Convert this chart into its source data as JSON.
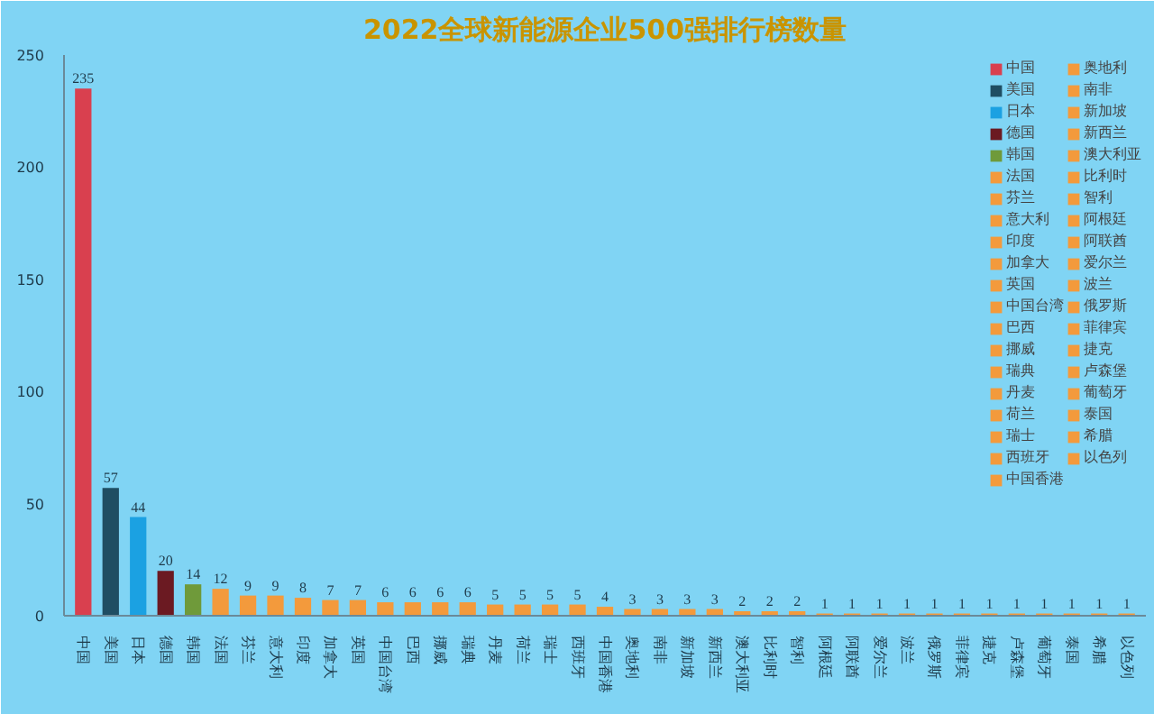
{
  "chart_data": {
    "type": "bar",
    "title": "2022全球新能源企业500强排行榜数量",
    "categories": [
      "中国",
      "美国",
      "日本",
      "德国",
      "韩国",
      "法国",
      "芬兰",
      "意大利",
      "印度",
      "加拿大",
      "英国",
      "中国台湾",
      "巴西",
      "挪威",
      "瑞典",
      "丹麦",
      "荷兰",
      "瑞士",
      "西班牙",
      "中国香港",
      "奥地利",
      "南非",
      "新加坡",
      "新西兰",
      "澳大利亚",
      "比利时",
      "智利",
      "阿根廷",
      "阿联酋",
      "爱尔兰",
      "波兰",
      "俄罗斯",
      "菲律宾",
      "捷克",
      "卢森堡",
      "葡萄牙",
      "泰国",
      "希腊",
      "以色列"
    ],
    "series": [
      {
        "name": "中国",
        "color": "#d9404f",
        "values": [
          235,
          null,
          null,
          null,
          null,
          null,
          null,
          null,
          null,
          null,
          null,
          null,
          null,
          null,
          null,
          null,
          null,
          null,
          null,
          null,
          null,
          null,
          null,
          null,
          null,
          null,
          null,
          null,
          null,
          null,
          null,
          null,
          null,
          null,
          null,
          null,
          null,
          null,
          null
        ]
      },
      {
        "name": "美国",
        "color": "#1f4e63",
        "values": [
          null,
          57,
          null,
          null,
          null,
          null,
          null,
          null,
          null,
          null,
          null,
          null,
          null,
          null,
          null,
          null,
          null,
          null,
          null,
          null,
          null,
          null,
          null,
          null,
          null,
          null,
          null,
          null,
          null,
          null,
          null,
          null,
          null,
          null,
          null,
          null,
          null,
          null,
          null
        ]
      },
      {
        "name": "日本",
        "color": "#1ba1e2",
        "values": [
          null,
          null,
          44,
          null,
          null,
          null,
          null,
          null,
          null,
          null,
          null,
          null,
          null,
          null,
          null,
          null,
          null,
          null,
          null,
          null,
          null,
          null,
          null,
          null,
          null,
          null,
          null,
          null,
          null,
          null,
          null,
          null,
          null,
          null,
          null,
          null,
          null,
          null,
          null
        ]
      },
      {
        "name": "德国",
        "color": "#6b1a22",
        "values": [
          null,
          null,
          null,
          20,
          null,
          null,
          null,
          null,
          null,
          null,
          null,
          null,
          null,
          null,
          null,
          null,
          null,
          null,
          null,
          null,
          null,
          null,
          null,
          null,
          null,
          null,
          null,
          null,
          null,
          null,
          null,
          null,
          null,
          null,
          null,
          null,
          null,
          null,
          null
        ]
      },
      {
        "name": "韩国",
        "color": "#6f9a3a",
        "values": [
          null,
          null,
          null,
          null,
          14,
          null,
          null,
          null,
          null,
          null,
          null,
          null,
          null,
          null,
          null,
          null,
          null,
          null,
          null,
          null,
          null,
          null,
          null,
          null,
          null,
          null,
          null,
          null,
          null,
          null,
          null,
          null,
          null,
          null,
          null,
          null,
          null,
          null,
          null
        ]
      },
      {
        "name": "法国",
        "color": "#f39a3c",
        "values": [
          null,
          null,
          null,
          null,
          null,
          12,
          null,
          null,
          null,
          null,
          null,
          null,
          null,
          null,
          null,
          null,
          null,
          null,
          null,
          null,
          null,
          null,
          null,
          null,
          null,
          null,
          null,
          null,
          null,
          null,
          null,
          null,
          null,
          null,
          null,
          null,
          null,
          null,
          null
        ]
      },
      {
        "name": "芬兰",
        "color": "#f39a3c",
        "values": [
          null,
          null,
          null,
          null,
          null,
          null,
          9,
          null,
          null,
          null,
          null,
          null,
          null,
          null,
          null,
          null,
          null,
          null,
          null,
          null,
          null,
          null,
          null,
          null,
          null,
          null,
          null,
          null,
          null,
          null,
          null,
          null,
          null,
          null,
          null,
          null,
          null,
          null,
          null
        ]
      },
      {
        "name": "意大利",
        "color": "#f39a3c",
        "values": [
          null,
          null,
          null,
          null,
          null,
          null,
          null,
          9,
          null,
          null,
          null,
          null,
          null,
          null,
          null,
          null,
          null,
          null,
          null,
          null,
          null,
          null,
          null,
          null,
          null,
          null,
          null,
          null,
          null,
          null,
          null,
          null,
          null,
          null,
          null,
          null,
          null,
          null,
          null
        ]
      },
      {
        "name": "印度",
        "color": "#f39a3c",
        "values": [
          null,
          null,
          null,
          null,
          null,
          null,
          null,
          null,
          8,
          null,
          null,
          null,
          null,
          null,
          null,
          null,
          null,
          null,
          null,
          null,
          null,
          null,
          null,
          null,
          null,
          null,
          null,
          null,
          null,
          null,
          null,
          null,
          null,
          null,
          null,
          null,
          null,
          null,
          null
        ]
      },
      {
        "name": "加拿大",
        "color": "#f39a3c",
        "values": [
          null,
          null,
          null,
          null,
          null,
          null,
          null,
          null,
          null,
          7,
          null,
          null,
          null,
          null,
          null,
          null,
          null,
          null,
          null,
          null,
          null,
          null,
          null,
          null,
          null,
          null,
          null,
          null,
          null,
          null,
          null,
          null,
          null,
          null,
          null,
          null,
          null,
          null,
          null
        ]
      },
      {
        "name": "英国",
        "color": "#f39a3c",
        "values": [
          null,
          null,
          null,
          null,
          null,
          null,
          null,
          null,
          null,
          null,
          7,
          null,
          null,
          null,
          null,
          null,
          null,
          null,
          null,
          null,
          null,
          null,
          null,
          null,
          null,
          null,
          null,
          null,
          null,
          null,
          null,
          null,
          null,
          null,
          null,
          null,
          null,
          null,
          null
        ]
      },
      {
        "name": "中国台湾",
        "color": "#f39a3c",
        "values": [
          null,
          null,
          null,
          null,
          null,
          null,
          null,
          null,
          null,
          null,
          null,
          6,
          null,
          null,
          null,
          null,
          null,
          null,
          null,
          null,
          null,
          null,
          null,
          null,
          null,
          null,
          null,
          null,
          null,
          null,
          null,
          null,
          null,
          null,
          null,
          null,
          null,
          null,
          null
        ]
      },
      {
        "name": "巴西",
        "color": "#f39a3c",
        "values": [
          null,
          null,
          null,
          null,
          null,
          null,
          null,
          null,
          null,
          null,
          null,
          null,
          6,
          null,
          null,
          null,
          null,
          null,
          null,
          null,
          null,
          null,
          null,
          null,
          null,
          null,
          null,
          null,
          null,
          null,
          null,
          null,
          null,
          null,
          null,
          null,
          null,
          null,
          null
        ]
      },
      {
        "name": "挪威",
        "color": "#f39a3c",
        "values": [
          null,
          null,
          null,
          null,
          null,
          null,
          null,
          null,
          null,
          null,
          null,
          null,
          null,
          6,
          null,
          null,
          null,
          null,
          null,
          null,
          null,
          null,
          null,
          null,
          null,
          null,
          null,
          null,
          null,
          null,
          null,
          null,
          null,
          null,
          null,
          null,
          null,
          null,
          null
        ]
      },
      {
        "name": "瑞典",
        "color": "#f39a3c",
        "values": [
          null,
          null,
          null,
          null,
          null,
          null,
          null,
          null,
          null,
          null,
          null,
          null,
          null,
          null,
          6,
          null,
          null,
          null,
          null,
          null,
          null,
          null,
          null,
          null,
          null,
          null,
          null,
          null,
          null,
          null,
          null,
          null,
          null,
          null,
          null,
          null,
          null,
          null,
          null
        ]
      },
      {
        "name": "丹麦",
        "color": "#f39a3c",
        "values": [
          null,
          null,
          null,
          null,
          null,
          null,
          null,
          null,
          null,
          null,
          null,
          null,
          null,
          null,
          null,
          5,
          null,
          null,
          null,
          null,
          null,
          null,
          null,
          null,
          null,
          null,
          null,
          null,
          null,
          null,
          null,
          null,
          null,
          null,
          null,
          null,
          null,
          null,
          null
        ]
      },
      {
        "name": "荷兰",
        "color": "#f39a3c",
        "values": [
          null,
          null,
          null,
          null,
          null,
          null,
          null,
          null,
          null,
          null,
          null,
          null,
          null,
          null,
          null,
          null,
          5,
          null,
          null,
          null,
          null,
          null,
          null,
          null,
          null,
          null,
          null,
          null,
          null,
          null,
          null,
          null,
          null,
          null,
          null,
          null,
          null,
          null,
          null
        ]
      },
      {
        "name": "瑞士",
        "color": "#f39a3c",
        "values": [
          null,
          null,
          null,
          null,
          null,
          null,
          null,
          null,
          null,
          null,
          null,
          null,
          null,
          null,
          null,
          null,
          null,
          5,
          null,
          null,
          null,
          null,
          null,
          null,
          null,
          null,
          null,
          null,
          null,
          null,
          null,
          null,
          null,
          null,
          null,
          null,
          null,
          null,
          null
        ]
      },
      {
        "name": "西班牙",
        "color": "#f39a3c",
        "values": [
          null,
          null,
          null,
          null,
          null,
          null,
          null,
          null,
          null,
          null,
          null,
          null,
          null,
          null,
          null,
          null,
          null,
          null,
          5,
          null,
          null,
          null,
          null,
          null,
          null,
          null,
          null,
          null,
          null,
          null,
          null,
          null,
          null,
          null,
          null,
          null,
          null,
          null,
          null
        ]
      },
      {
        "name": "中国香港",
        "color": "#f39a3c",
        "values": [
          null,
          null,
          null,
          null,
          null,
          null,
          null,
          null,
          null,
          null,
          null,
          null,
          null,
          null,
          null,
          null,
          null,
          null,
          null,
          4,
          null,
          null,
          null,
          null,
          null,
          null,
          null,
          null,
          null,
          null,
          null,
          null,
          null,
          null,
          null,
          null,
          null,
          null,
          null
        ]
      },
      {
        "name": "奥地利",
        "color": "#f39a3c",
        "values": [
          null,
          null,
          null,
          null,
          null,
          null,
          null,
          null,
          null,
          null,
          null,
          null,
          null,
          null,
          null,
          null,
          null,
          null,
          null,
          null,
          3,
          null,
          null,
          null,
          null,
          null,
          null,
          null,
          null,
          null,
          null,
          null,
          null,
          null,
          null,
          null,
          null,
          null,
          null
        ]
      },
      {
        "name": "南非",
        "color": "#f39a3c",
        "values": [
          null,
          null,
          null,
          null,
          null,
          null,
          null,
          null,
          null,
          null,
          null,
          null,
          null,
          null,
          null,
          null,
          null,
          null,
          null,
          null,
          null,
          3,
          null,
          null,
          null,
          null,
          null,
          null,
          null,
          null,
          null,
          null,
          null,
          null,
          null,
          null,
          null,
          null,
          null
        ]
      },
      {
        "name": "新加坡",
        "color": "#f39a3c",
        "values": [
          null,
          null,
          null,
          null,
          null,
          null,
          null,
          null,
          null,
          null,
          null,
          null,
          null,
          null,
          null,
          null,
          null,
          null,
          null,
          null,
          null,
          null,
          3,
          null,
          null,
          null,
          null,
          null,
          null,
          null,
          null,
          null,
          null,
          null,
          null,
          null,
          null,
          null,
          null
        ]
      },
      {
        "name": "新西兰",
        "color": "#f39a3c",
        "values": [
          null,
          null,
          null,
          null,
          null,
          null,
          null,
          null,
          null,
          null,
          null,
          null,
          null,
          null,
          null,
          null,
          null,
          null,
          null,
          null,
          null,
          null,
          null,
          3,
          null,
          null,
          null,
          null,
          null,
          null,
          null,
          null,
          null,
          null,
          null,
          null,
          null,
          null,
          null
        ]
      },
      {
        "name": "澳大利亚",
        "color": "#f39a3c",
        "values": [
          null,
          null,
          null,
          null,
          null,
          null,
          null,
          null,
          null,
          null,
          null,
          null,
          null,
          null,
          null,
          null,
          null,
          null,
          null,
          null,
          null,
          null,
          null,
          null,
          2,
          null,
          null,
          null,
          null,
          null,
          null,
          null,
          null,
          null,
          null,
          null,
          null,
          null,
          null
        ]
      },
      {
        "name": "比利时",
        "color": "#f39a3c",
        "values": [
          null,
          null,
          null,
          null,
          null,
          null,
          null,
          null,
          null,
          null,
          null,
          null,
          null,
          null,
          null,
          null,
          null,
          null,
          null,
          null,
          null,
          null,
          null,
          null,
          null,
          2,
          null,
          null,
          null,
          null,
          null,
          null,
          null,
          null,
          null,
          null,
          null,
          null,
          null
        ]
      },
      {
        "name": "智利",
        "color": "#f39a3c",
        "values": [
          null,
          null,
          null,
          null,
          null,
          null,
          null,
          null,
          null,
          null,
          null,
          null,
          null,
          null,
          null,
          null,
          null,
          null,
          null,
          null,
          null,
          null,
          null,
          null,
          null,
          null,
          2,
          null,
          null,
          null,
          null,
          null,
          null,
          null,
          null,
          null,
          null,
          null,
          null
        ]
      },
      {
        "name": "阿根廷",
        "color": "#f39a3c",
        "values": [
          null,
          null,
          null,
          null,
          null,
          null,
          null,
          null,
          null,
          null,
          null,
          null,
          null,
          null,
          null,
          null,
          null,
          null,
          null,
          null,
          null,
          null,
          null,
          null,
          null,
          null,
          null,
          1,
          null,
          null,
          null,
          null,
          null,
          null,
          null,
          null,
          null,
          null,
          null
        ]
      },
      {
        "name": "阿联酋",
        "color": "#f39a3c",
        "values": [
          null,
          null,
          null,
          null,
          null,
          null,
          null,
          null,
          null,
          null,
          null,
          null,
          null,
          null,
          null,
          null,
          null,
          null,
          null,
          null,
          null,
          null,
          null,
          null,
          null,
          null,
          null,
          null,
          1,
          null,
          null,
          null,
          null,
          null,
          null,
          null,
          null,
          null,
          null
        ]
      },
      {
        "name": "爱尔兰",
        "color": "#f39a3c",
        "values": [
          null,
          null,
          null,
          null,
          null,
          null,
          null,
          null,
          null,
          null,
          null,
          null,
          null,
          null,
          null,
          null,
          null,
          null,
          null,
          null,
          null,
          null,
          null,
          null,
          null,
          null,
          null,
          null,
          null,
          1,
          null,
          null,
          null,
          null,
          null,
          null,
          null,
          null,
          null
        ]
      },
      {
        "name": "波兰",
        "color": "#f39a3c",
        "values": [
          null,
          null,
          null,
          null,
          null,
          null,
          null,
          null,
          null,
          null,
          null,
          null,
          null,
          null,
          null,
          null,
          null,
          null,
          null,
          null,
          null,
          null,
          null,
          null,
          null,
          null,
          null,
          null,
          null,
          null,
          1,
          null,
          null,
          null,
          null,
          null,
          null,
          null,
          null
        ]
      },
      {
        "name": "俄罗斯",
        "color": "#f39a3c",
        "values": [
          null,
          null,
          null,
          null,
          null,
          null,
          null,
          null,
          null,
          null,
          null,
          null,
          null,
          null,
          null,
          null,
          null,
          null,
          null,
          null,
          null,
          null,
          null,
          null,
          null,
          null,
          null,
          null,
          null,
          null,
          null,
          1,
          null,
          null,
          null,
          null,
          null,
          null,
          null
        ]
      },
      {
        "name": "菲律宾",
        "color": "#f39a3c",
        "values": [
          null,
          null,
          null,
          null,
          null,
          null,
          null,
          null,
          null,
          null,
          null,
          null,
          null,
          null,
          null,
          null,
          null,
          null,
          null,
          null,
          null,
          null,
          null,
          null,
          null,
          null,
          null,
          null,
          null,
          null,
          null,
          null,
          1,
          null,
          null,
          null,
          null,
          null,
          null
        ]
      },
      {
        "name": "捷克",
        "color": "#f39a3c",
        "values": [
          null,
          null,
          null,
          null,
          null,
          null,
          null,
          null,
          null,
          null,
          null,
          null,
          null,
          null,
          null,
          null,
          null,
          null,
          null,
          null,
          null,
          null,
          null,
          null,
          null,
          null,
          null,
          null,
          null,
          null,
          null,
          null,
          null,
          1,
          null,
          null,
          null,
          null,
          null
        ]
      },
      {
        "name": "卢森堡",
        "color": "#f39a3c",
        "values": [
          null,
          null,
          null,
          null,
          null,
          null,
          null,
          null,
          null,
          null,
          null,
          null,
          null,
          null,
          null,
          null,
          null,
          null,
          null,
          null,
          null,
          null,
          null,
          null,
          null,
          null,
          null,
          null,
          null,
          null,
          null,
          null,
          null,
          null,
          1,
          null,
          null,
          null,
          null
        ]
      },
      {
        "name": "葡萄牙",
        "color": "#f39a3c",
        "values": [
          null,
          null,
          null,
          null,
          null,
          null,
          null,
          null,
          null,
          null,
          null,
          null,
          null,
          null,
          null,
          null,
          null,
          null,
          null,
          null,
          null,
          null,
          null,
          null,
          null,
          null,
          null,
          null,
          null,
          null,
          null,
          null,
          null,
          null,
          null,
          1,
          null,
          null,
          null
        ]
      },
      {
        "name": "泰国",
        "color": "#f39a3c",
        "values": [
          null,
          null,
          null,
          null,
          null,
          null,
          null,
          null,
          null,
          null,
          null,
          null,
          null,
          null,
          null,
          null,
          null,
          null,
          null,
          null,
          null,
          null,
          null,
          null,
          null,
          null,
          null,
          null,
          null,
          null,
          null,
          null,
          null,
          null,
          null,
          null,
          1,
          null,
          null
        ]
      },
      {
        "name": "希腊",
        "color": "#f39a3c",
        "values": [
          null,
          null,
          null,
          null,
          null,
          null,
          null,
          null,
          null,
          null,
          null,
          null,
          null,
          null,
          null,
          null,
          null,
          null,
          null,
          null,
          null,
          null,
          null,
          null,
          null,
          null,
          null,
          null,
          null,
          null,
          null,
          null,
          null,
          null,
          null,
          null,
          null,
          1,
          null
        ]
      },
      {
        "name": "以色列",
        "color": "#f39a3c",
        "values": [
          null,
          null,
          null,
          null,
          null,
          null,
          null,
          null,
          null,
          null,
          null,
          null,
          null,
          null,
          null,
          null,
          null,
          null,
          null,
          null,
          null,
          null,
          null,
          null,
          null,
          null,
          null,
          null,
          null,
          null,
          null,
          null,
          null,
          null,
          null,
          null,
          null,
          null,
          1
        ]
      }
    ],
    "ylim": [
      0,
      250
    ],
    "yticks": [
      0,
      50,
      100,
      150,
      200,
      250
    ],
    "data_labels": true,
    "legend": "top right"
  }
}
